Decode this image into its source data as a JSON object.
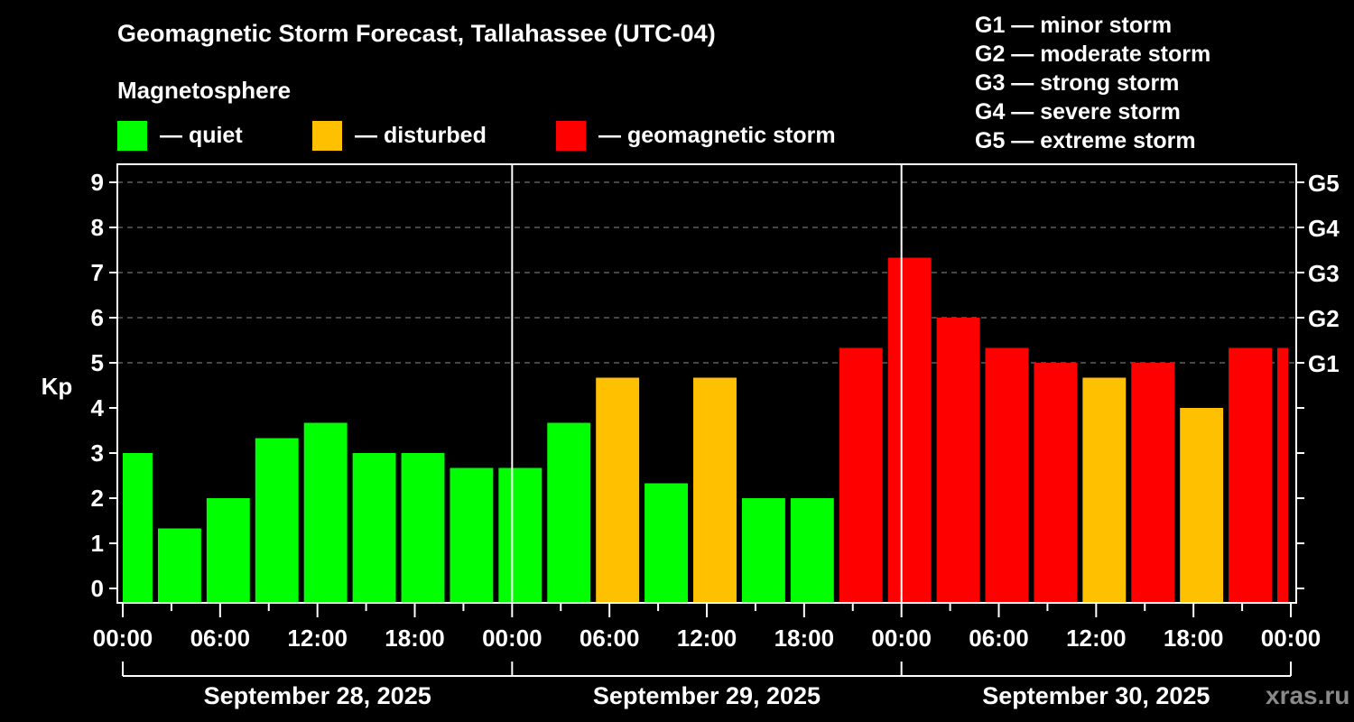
{
  "header": {
    "title": "Geomagnetic Storm Forecast, Tallahassee (UTC-04)",
    "subtitle": "Magnetosphere"
  },
  "legend": [
    {
      "label": "— quiet",
      "color": "#00ff00"
    },
    {
      "label": "— disturbed",
      "color": "#ffc000"
    },
    {
      "label": "— geomagnetic storm",
      "color": "#ff0000"
    }
  ],
  "g_scale": [
    "G1 — minor storm",
    "G2 — moderate storm",
    "G3 — strong storm",
    "G4 — severe storm",
    "G5 — extreme storm"
  ],
  "watermark": "xras.ru",
  "chart_data": {
    "type": "bar",
    "title": "Geomagnetic Storm Forecast, Tallahassee (UTC-04)",
    "ylabel": "Kp",
    "xlabel": "",
    "ylim": [
      0,
      9
    ],
    "yticks": [
      "0",
      "1",
      "2",
      "3",
      "4",
      "5",
      "6",
      "7",
      "8",
      "9"
    ],
    "right_ticks": [
      {
        "kp": 5,
        "label": "G1"
      },
      {
        "kp": 6,
        "label": "G2"
      },
      {
        "kp": 7,
        "label": "G3"
      },
      {
        "kp": 8,
        "label": "G4"
      },
      {
        "kp": 9,
        "label": "G5"
      }
    ],
    "grid": "dashed horizontal at Kp 5-9",
    "xrange_hours": [
      0,
      72
    ],
    "xtick_labels": [
      "00:00",
      "06:00",
      "12:00",
      "18:00",
      "00:00",
      "06:00",
      "12:00",
      "18:00",
      "00:00",
      "06:00",
      "12:00",
      "18:00",
      "00:00"
    ],
    "day_labels": [
      "September 28, 2025",
      "September 29, 2025",
      "September 30, 2025"
    ],
    "colors": {
      "quiet": "#00ff00",
      "disturbed": "#ffc000",
      "storm": "#ff0000"
    },
    "bars": [
      {
        "start_h": 0,
        "end_h": 2,
        "kp": 3.0,
        "level": "quiet"
      },
      {
        "start_h": 2,
        "end_h": 5,
        "kp": 1.33,
        "level": "quiet"
      },
      {
        "start_h": 5,
        "end_h": 8,
        "kp": 2.0,
        "level": "quiet"
      },
      {
        "start_h": 8,
        "end_h": 11,
        "kp": 3.33,
        "level": "quiet"
      },
      {
        "start_h": 11,
        "end_h": 14,
        "kp": 3.67,
        "level": "quiet"
      },
      {
        "start_h": 14,
        "end_h": 17,
        "kp": 3.0,
        "level": "quiet"
      },
      {
        "start_h": 17,
        "end_h": 20,
        "kp": 3.0,
        "level": "quiet"
      },
      {
        "start_h": 20,
        "end_h": 23,
        "kp": 2.67,
        "level": "quiet"
      },
      {
        "start_h": 23,
        "end_h": 26,
        "kp": 2.67,
        "level": "quiet"
      },
      {
        "start_h": 26,
        "end_h": 29,
        "kp": 3.67,
        "level": "quiet"
      },
      {
        "start_h": 29,
        "end_h": 32,
        "kp": 4.67,
        "level": "disturbed"
      },
      {
        "start_h": 32,
        "end_h": 35,
        "kp": 2.33,
        "level": "quiet"
      },
      {
        "start_h": 35,
        "end_h": 38,
        "kp": 4.67,
        "level": "disturbed"
      },
      {
        "start_h": 38,
        "end_h": 41,
        "kp": 2.0,
        "level": "quiet"
      },
      {
        "start_h": 41,
        "end_h": 44,
        "kp": 2.0,
        "level": "quiet"
      },
      {
        "start_h": 44,
        "end_h": 47,
        "kp": 5.33,
        "level": "storm"
      },
      {
        "start_h": 47,
        "end_h": 50,
        "kp": 7.33,
        "level": "storm"
      },
      {
        "start_h": 50,
        "end_h": 53,
        "kp": 6.0,
        "level": "storm"
      },
      {
        "start_h": 53,
        "end_h": 56,
        "kp": 5.33,
        "level": "storm"
      },
      {
        "start_h": 56,
        "end_h": 59,
        "kp": 5.0,
        "level": "storm"
      },
      {
        "start_h": 59,
        "end_h": 62,
        "kp": 4.67,
        "level": "disturbed"
      },
      {
        "start_h": 62,
        "end_h": 65,
        "kp": 5.0,
        "level": "storm"
      },
      {
        "start_h": 65,
        "end_h": 68,
        "kp": 4.0,
        "level": "disturbed"
      },
      {
        "start_h": 68,
        "end_h": 71,
        "kp": 5.33,
        "level": "storm"
      },
      {
        "start_h": 71,
        "end_h": 72,
        "kp": 5.33,
        "level": "storm"
      }
    ]
  }
}
